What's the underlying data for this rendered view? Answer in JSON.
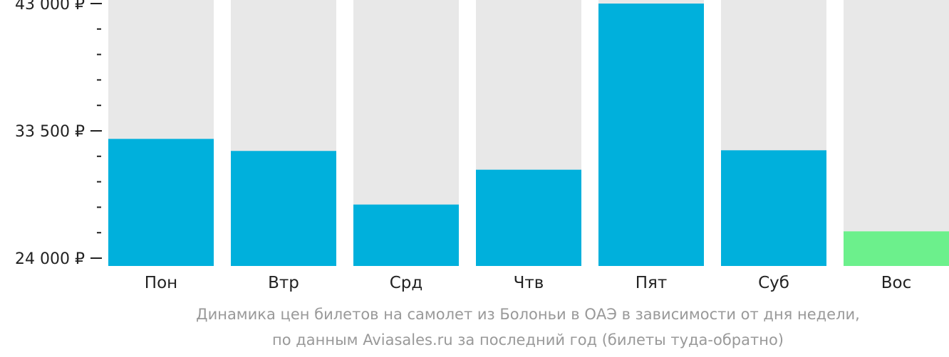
{
  "chart_data": {
    "type": "bar",
    "title": "",
    "xlabel": "",
    "ylabel": "",
    "ylim": [
      24000,
      43000
    ],
    "yticks": [
      {
        "value": 43000,
        "label": "43 000 ₽"
      },
      {
        "value": 33500,
        "label": "33 500 ₽"
      },
      {
        "value": 24000,
        "label": "24 000 ₽"
      }
    ],
    "minor_ticks_per_interval": 5,
    "categories": [
      "Пон",
      "Втр",
      "Срд",
      "Чтв",
      "Пят",
      "Суб",
      "Вос"
    ],
    "values": [
      32900,
      32000,
      28000,
      30600,
      43000,
      32050,
      26000
    ],
    "highlight_index": 6,
    "grid": false
  },
  "caption": {
    "line1": "Динамика цен билетов на самолет из Болоньи в ОАЭ в зависимости от дня недели,",
    "line2": "по данным Aviasales.ru за последний год (билеты туда-обратно)"
  },
  "colors": {
    "bar": "#00b0dc",
    "highlight": "#6cf08c",
    "track": "#e8e8e8",
    "axis": "#222222"
  }
}
